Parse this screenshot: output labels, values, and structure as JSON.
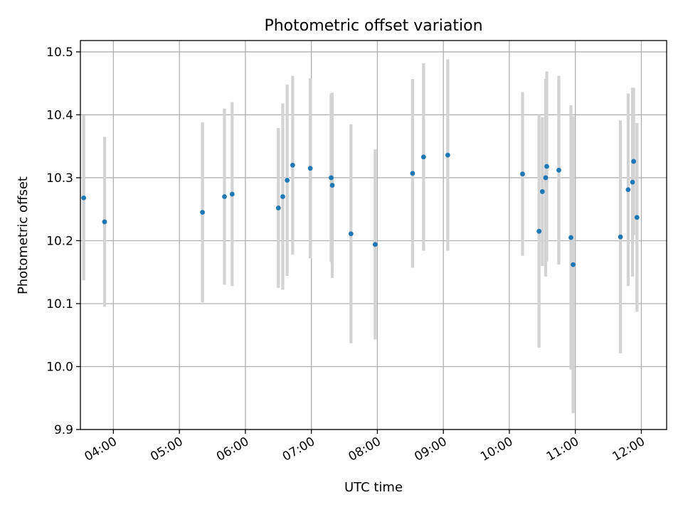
{
  "chart_data": {
    "type": "scatter",
    "title": "Photometric offset variation",
    "xlabel": "UTC time",
    "ylabel": "Photometric offset",
    "x_tick_labels": [
      "04:00",
      "05:00",
      "06:00",
      "07:00",
      "08:00",
      "09:00",
      "10:00",
      "11:00",
      "12:00"
    ],
    "y_tick_labels": [
      "9.9",
      "10.0",
      "10.1",
      "10.2",
      "10.3",
      "10.4",
      "10.5"
    ],
    "xlim": [
      "03:30",
      "12:23"
    ],
    "ylim": [
      9.9,
      10.518
    ],
    "grid": true,
    "marker_color": "#1f77b4",
    "errorbar_color": "#d3d3d3",
    "points": [
      {
        "x": "03:33",
        "y": 10.268,
        "yerr": 0.131
      },
      {
        "x": "03:52",
        "y": 10.23,
        "yerr": 0.135
      },
      {
        "x": "05:21",
        "y": 10.245,
        "yerr": 0.143
      },
      {
        "x": "05:41",
        "y": 10.27,
        "yerr": 0.14
      },
      {
        "x": "05:48",
        "y": 10.274,
        "yerr": 0.146
      },
      {
        "x": "06:30",
        "y": 10.252,
        "yerr": 0.127
      },
      {
        "x": "06:34",
        "y": 10.27,
        "yerr": 0.148
      },
      {
        "x": "06:38",
        "y": 10.296,
        "yerr": 0.152
      },
      {
        "x": "06:43",
        "y": 10.32,
        "yerr": 0.142
      },
      {
        "x": "06:59",
        "y": 10.315,
        "yerr": 0.143
      },
      {
        "x": "07:18",
        "y": 10.3,
        "yerr": 0.134
      },
      {
        "x": "07:19",
        "y": 10.288,
        "yerr": 0.147
      },
      {
        "x": "07:36",
        "y": 10.211,
        "yerr": 0.174
      },
      {
        "x": "07:58",
        "y": 10.194,
        "yerr": 0.151
      },
      {
        "x": "08:32",
        "y": 10.307,
        "yerr": 0.15
      },
      {
        "x": "08:42",
        "y": 10.333,
        "yerr": 0.149
      },
      {
        "x": "09:04",
        "y": 10.336,
        "yerr": 0.152
      },
      {
        "x": "10:12",
        "y": 10.306,
        "yerr": 0.13
      },
      {
        "x": "10:27",
        "y": 10.215,
        "yerr": 0.185
      },
      {
        "x": "10:30",
        "y": 10.278,
        "yerr": 0.118
      },
      {
        "x": "10:33",
        "y": 10.3,
        "yerr": 0.157
      },
      {
        "x": "10:34",
        "y": 10.318,
        "yerr": 0.151
      },
      {
        "x": "10:45",
        "y": 10.312,
        "yerr": 0.15
      },
      {
        "x": "10:56",
        "y": 10.205,
        "yerr": 0.21
      },
      {
        "x": "10:58",
        "y": 10.162,
        "yerr": 0.236
      },
      {
        "x": "11:41",
        "y": 10.206,
        "yerr": 0.185
      },
      {
        "x": "11:48",
        "y": 10.281,
        "yerr": 0.153
      },
      {
        "x": "11:52",
        "y": 10.293,
        "yerr": 0.15
      },
      {
        "x": "11:53",
        "y": 10.326,
        "yerr": 0.117
      },
      {
        "x": "11:56",
        "y": 10.237,
        "yerr": 0.15
      }
    ]
  }
}
